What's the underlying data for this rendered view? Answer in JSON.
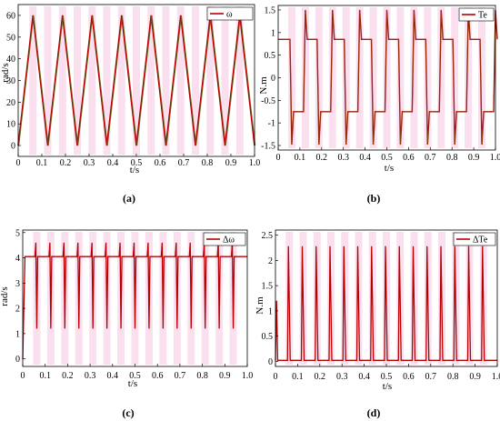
{
  "colors": {
    "trace": "#b80000",
    "trace_alt": "#5a6a1a",
    "shade": "#f4b8dc",
    "axis": "#000000"
  },
  "panels": [
    {
      "caption": "(a)"
    },
    {
      "caption": "(b)"
    },
    {
      "caption": "(c)"
    },
    {
      "caption": "(d)"
    }
  ],
  "chart_data": [
    {
      "type": "line",
      "title": "",
      "xlabel": "t/s",
      "ylabel": "rad/s",
      "xlim": [
        0,
        1.0
      ],
      "ylim": [
        -5,
        65
      ],
      "xticks": [
        "0",
        "0.1",
        "0.2",
        "0.3",
        "0.4",
        "0.5",
        "0.6",
        "0.7",
        "0.8",
        "0.9",
        "1.0"
      ],
      "yticks": [
        "0",
        "10",
        "20",
        "30",
        "40",
        "50",
        "60"
      ],
      "grid": false,
      "legend_position": "top-right",
      "series": [
        {
          "name": "ω",
          "x": [
            0,
            0.0625,
            0.125,
            0.1875,
            0.25,
            0.3125,
            0.375,
            0.4375,
            0.5,
            0.5625,
            0.625,
            0.6875,
            0.75,
            0.8125,
            0.875,
            0.9375,
            1.0
          ],
          "y": [
            0,
            60,
            0,
            60,
            0,
            60,
            0,
            60,
            0,
            60,
            0,
            60,
            0,
            60,
            0,
            60,
            0
          ]
        }
      ]
    },
    {
      "type": "line",
      "title": "",
      "xlabel": "t/s",
      "ylabel": "N.m",
      "xlim": [
        0,
        1.0
      ],
      "ylim": [
        -1.6,
        1.6
      ],
      "xticks": [
        "0",
        "0.1",
        "0.2",
        "0.3",
        "0.4",
        "0.5",
        "0.6",
        "0.7",
        "0.8",
        "0.9",
        "1.0"
      ],
      "yticks": [
        "-1.5",
        "-1",
        "-0.5",
        "0",
        "0.5",
        "1",
        "1.5"
      ],
      "grid": false,
      "legend_position": "top-right",
      "series": [
        {
          "name": "Te",
          "x": [
            0,
            0.0625,
            0.125,
            0.1875,
            0.25,
            0.3125,
            0.375,
            0.4375,
            0.5,
            0.5625,
            0.625,
            0.6875,
            0.75,
            0.8125,
            0.875,
            0.9375,
            1.0
          ],
          "y": [
            0.85,
            -0.75,
            0.85,
            -0.75,
            0.85,
            -0.75,
            0.85,
            -0.75,
            0.85,
            -0.75,
            0.85,
            -0.75,
            0.85,
            -0.75,
            0.85,
            -0.75,
            0.85
          ]
        }
      ]
    },
    {
      "type": "line",
      "title": "",
      "xlabel": "t/s",
      "ylabel": "rad/s",
      "xlim": [
        0,
        1.0
      ],
      "ylim": [
        -0.3,
        5.1
      ],
      "xticks": [
        "0",
        "0.1",
        "0.2",
        "0.3",
        "0.4",
        "0.5",
        "0.6",
        "0.7",
        "0.8",
        "0.9",
        "1.0"
      ],
      "yticks": [
        "0",
        "1",
        "2",
        "3",
        "4",
        "5"
      ],
      "grid": false,
      "legend_position": "top-right",
      "series": [
        {
          "name": "Δω",
          "x": [
            0,
            0.0625,
            0.125,
            0.1875,
            0.25,
            0.3125,
            0.375,
            0.4375,
            0.5,
            0.5625,
            0.625,
            0.6875,
            0.75,
            0.8125,
            0.875,
            0.9375,
            1.0
          ],
          "y": [
            4.05,
            4.05,
            4.05,
            4.05,
            4.05,
            4.05,
            4.05,
            4.05,
            4.05,
            4.05,
            4.05,
            4.05,
            4.05,
            4.05,
            4.05,
            4.05,
            4.05
          ],
          "spike_max": 4.6,
          "spike_min": 1.2
        }
      ]
    },
    {
      "type": "line",
      "title": "",
      "xlabel": "t/s",
      "ylabel": "N.m",
      "xlim": [
        0,
        1.0
      ],
      "ylim": [
        -0.1,
        2.6
      ],
      "xticks": [
        "0",
        "0.1",
        "0.2",
        "0.3",
        "0.4",
        "0.5",
        "0.6",
        "0.7",
        "0.8",
        "0.9",
        "1.0"
      ],
      "yticks": [
        "0",
        "0.5",
        "1",
        "1.5",
        "2",
        "2.5"
      ],
      "grid": false,
      "legend_position": "top-right",
      "series": [
        {
          "name": "ΔTe",
          "x": [
            0,
            0.0625,
            0.125,
            0.1875,
            0.25,
            0.3125,
            0.375,
            0.4375,
            0.5,
            0.5625,
            0.625,
            0.6875,
            0.75,
            0.8125,
            0.875,
            0.9375,
            1.0
          ],
          "y": [
            0.02,
            0.02,
            0.02,
            0.02,
            0.02,
            0.02,
            0.02,
            0.02,
            0.02,
            0.02,
            0.02,
            0.02,
            0.02,
            0.02,
            0.02,
            0.02,
            0.02
          ],
          "spike_max": 2.28
        }
      ]
    }
  ]
}
